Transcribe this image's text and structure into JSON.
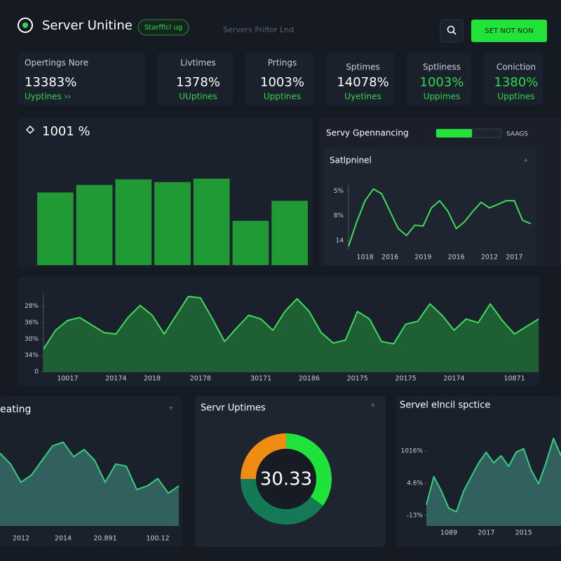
{
  "header": {
    "title": "Server Unitine",
    "badge": "Starfficl ug",
    "search": "Servers Prifior Lnd",
    "button": "SET NOT NON"
  },
  "stats": [
    {
      "label": "Opertings Nore",
      "value": "13383%",
      "sub": "Uyptines ››"
    },
    {
      "label": "Livtimes",
      "value": "1378%",
      "sub": "UUptines"
    },
    {
      "label": "Prtings",
      "value": "1003%",
      "sub": "Upptines"
    },
    {
      "label": "Sptimes",
      "value": "14078%",
      "sub": "Uyetines"
    },
    {
      "label": "Sptliness",
      "value": "1003%",
      "sub": "Uppimes"
    },
    {
      "label": "Coniction",
      "value": "1380%",
      "sub": "Upptines"
    }
  ],
  "panel": {
    "title": "Servy Gpennancing",
    "progress": 55,
    "label": "SAAGS"
  },
  "chart_data": [
    {
      "type": "bar",
      "title": "1001 %",
      "categories": [
        null,
        null,
        null,
        null,
        null,
        null,
        null
      ],
      "values": [
        105,
        116,
        124,
        120,
        125,
        64,
        93
      ],
      "color": "#1f9a34",
      "ylim": [
        0,
        140
      ]
    },
    {
      "type": "line",
      "title": "Satlpninel",
      "categories": [
        null,
        null,
        "1018",
        null,
        null,
        "2016",
        null,
        null,
        null,
        "2019",
        null,
        null,
        null,
        "2016",
        null,
        null,
        null,
        "2012",
        null,
        null,
        "2017",
        null,
        null
      ],
      "values": [
        0.77,
        1.76,
        2.61,
        3.09,
        2.89,
        2.18,
        1.48,
        1.2,
        1.62,
        1.59,
        2.32,
        2.61,
        2.18,
        1.48,
        1.76,
        2.18,
        2.55,
        2.32,
        2.46,
        2.61,
        2.61,
        1.82,
        1.68
      ],
      "color": "#3ddc5a",
      "ylim": [
        0.6,
        3.3
      ],
      "yticks": [
        {
          "value": 1,
          "label": "14"
        },
        {
          "value": 2,
          "label": "8%"
        },
        {
          "value": 3,
          "label": "5%"
        }
      ]
    },
    {
      "type": "area",
      "categories": [
        null,
        null,
        "10017",
        null,
        null,
        null,
        "20174",
        null,
        null,
        "2018",
        null,
        null,
        null,
        "20178",
        null,
        null,
        null,
        null,
        "30171",
        null,
        null,
        null,
        "20186",
        null,
        null,
        null,
        "20175",
        null,
        null,
        null,
        "20175",
        null,
        null,
        null,
        "20174",
        null,
        null,
        null,
        null,
        "10871",
        null,
        null
      ],
      "values": [
        1.38,
        2.53,
        3.13,
        3.31,
        2.85,
        2.39,
        2.3,
        3.31,
        4.05,
        3.45,
        2.3,
        3.45,
        4.6,
        4.51,
        3.22,
        1.84,
        2.67,
        3.45,
        3.22,
        2.53,
        3.68,
        4.46,
        3.68,
        2.39,
        1.75,
        1.93,
        3.68,
        3.22,
        1.84,
        1.7,
        2.9,
        3.08,
        4.14,
        3.45,
        2.53,
        3.22,
        2.99,
        4.14,
        3.13,
        2.3,
        2.76,
        3.22
      ],
      "color": "#3ddc5a",
      "fill": "#1f6b35",
      "ylim": [
        0,
        4.8
      ],
      "yticks": [
        {
          "value": 0,
          "label": "0"
        },
        {
          "value": 1,
          "label": "34%"
        },
        {
          "value": 2,
          "label": "30%"
        },
        {
          "value": 3,
          "label": "36%"
        },
        {
          "value": 4,
          "label": "28%"
        }
      ]
    },
    {
      "type": "area",
      "title": "eating",
      "categories": [
        null,
        null,
        "2012",
        null,
        null,
        null,
        "2014",
        null,
        null,
        null,
        "20.891",
        null,
        null,
        null,
        null,
        "100.12",
        null,
        null
      ],
      "values": [
        10,
        8.5,
        6,
        7,
        9,
        11,
        11.5,
        9.5,
        10.5,
        9,
        6,
        8.5,
        8.2,
        5,
        5.5,
        6.5,
        4.5,
        5.5
      ],
      "color": "#33d17a",
      "fill": "#356b68",
      "ylim": [
        0,
        13
      ]
    },
    {
      "type": "pie",
      "title": "Servr Uptimes",
      "center_label": "30.33",
      "values": [
        35,
        40,
        25
      ],
      "colors": [
        "#1fe33a",
        "#137a55",
        "#f08c12"
      ]
    },
    {
      "type": "area",
      "title": "Servel elncil spctice",
      "categories": [
        null,
        null,
        null,
        "1089",
        null,
        null,
        null,
        null,
        "2017",
        null,
        null,
        null,
        null,
        "2015",
        null,
        null,
        null,
        null,
        null
      ],
      "values": [
        1.33,
        2.2,
        1.76,
        1.22,
        1.11,
        1.76,
        2.2,
        2.63,
        2.96,
        2.63,
        2.85,
        2.52,
        2.96,
        3.07,
        2.41,
        1.98,
        2.63,
        3.39,
        2.85
      ],
      "color": "#33d17a",
      "fill": "#356b68",
      "ylim": [
        0.67,
        3.72
      ],
      "yticks": [
        {
          "value": 1,
          "label": "-13%"
        },
        {
          "value": 2,
          "label": "4.6%"
        },
        {
          "value": 3,
          "label": "1016%"
        }
      ]
    }
  ]
}
